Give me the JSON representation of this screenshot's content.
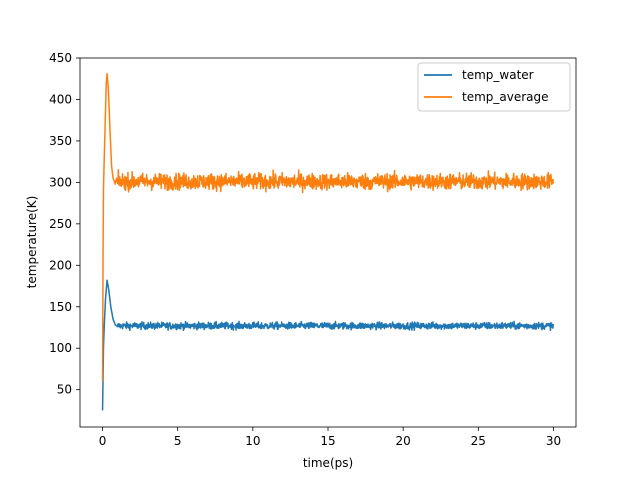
{
  "chart_data": {
    "type": "line",
    "title": "",
    "xlabel": "time(ps)",
    "ylabel": "temperature(K)",
    "xlim": [
      -1.5,
      31.5
    ],
    "ylim": [
      5,
      450
    ],
    "xticks": [
      "0",
      "5",
      "10",
      "15",
      "20",
      "25",
      "30"
    ],
    "xtick_values": [
      0,
      5,
      10,
      15,
      20,
      25,
      30
    ],
    "yticks": [
      "50",
      "100",
      "150",
      "200",
      "250",
      "300",
      "350",
      "400",
      "450"
    ],
    "ytick_values": [
      50,
      100,
      150,
      200,
      250,
      300,
      350,
      400,
      450
    ],
    "grid": false,
    "legend_position": "top-right",
    "series": [
      {
        "name": "temp_water",
        "color": "#1f77b4",
        "points": [
          [
            0.0,
            25
          ],
          [
            0.03,
            60
          ],
          [
            0.06,
            100
          ],
          [
            0.12,
            130
          ],
          [
            0.2,
            160
          ],
          [
            0.3,
            182
          ],
          [
            0.4,
            172
          ],
          [
            0.55,
            150
          ],
          [
            0.7,
            135
          ],
          [
            0.85,
            128
          ],
          [
            1.0,
            126
          ]
        ],
        "steady_mean": 127,
        "steady_noise": 3,
        "x_end": 30
      },
      {
        "name": "temp_average",
        "color": "#ff7f0e",
        "points": [
          [
            0.0,
            60
          ],
          [
            0.03,
            200
          ],
          [
            0.06,
            290
          ],
          [
            0.1,
            320
          ],
          [
            0.18,
            375
          ],
          [
            0.25,
            420
          ],
          [
            0.3,
            431
          ],
          [
            0.38,
            415
          ],
          [
            0.48,
            370
          ],
          [
            0.6,
            320
          ],
          [
            0.7,
            305
          ],
          [
            0.85,
            298
          ]
        ],
        "steady_mean": 301,
        "steady_noise": 7,
        "x_end": 30
      }
    ]
  }
}
